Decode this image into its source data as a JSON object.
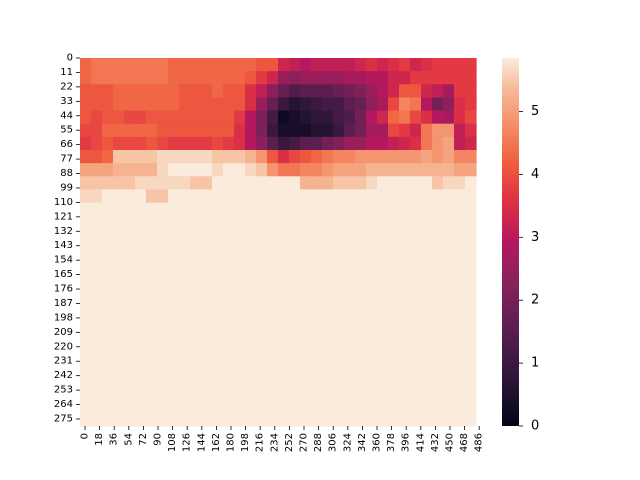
{
  "chart_data": {
    "type": "heatmap",
    "title": "",
    "xlabel": "",
    "ylabel": "",
    "x_tick_labels": [
      "0",
      "18",
      "36",
      "54",
      "72",
      "90",
      "108",
      "126",
      "144",
      "162",
      "180",
      "198",
      "216",
      "234",
      "252",
      "270",
      "288",
      "306",
      "324",
      "342",
      "360",
      "378",
      "396",
      "414",
      "432",
      "450",
      "468",
      "486"
    ],
    "y_tick_labels": [
      "0",
      "11",
      "22",
      "33",
      "44",
      "55",
      "66",
      "77",
      "88",
      "99",
      "110",
      "121",
      "132",
      "143",
      "154",
      "165",
      "176",
      "187",
      "198",
      "209",
      "220",
      "231",
      "242",
      "253",
      "264",
      "275"
    ],
    "colorbar": {
      "ticks": [
        "0",
        "1",
        "2",
        "3",
        "4",
        "5"
      ],
      "vmin": 0,
      "vmax": 5.85,
      "colormap": "rocket"
    },
    "grid_shape": {
      "rows": 28,
      "cols": 36
    },
    "value_grid_note": "downsampled 28x36 estimate of cell values (0-5.85)",
    "values": [
      "WXXXXXXXWWWWWWWWVVRQPQQQQRSRSTRSTTTT",
      "WXXXXXXXWWWWWWWVTRNMNNNNOOPPRRTTTTTT",
      "VVVWWWWWWVVVWVVSQMJHIIIJKLNPRVVRQOTT",
      "VVVWWWWWWVVVVVVSNJFDEFGGIJMOUYXPKMST",
      "VUVVUUVVVVVVVVTPLGBCDEEGHKPRWXUSPOSU",
      "UUWWWWWVVVVVVVSPLFCCCDDFIKOOUTRXZZQS",
      "TUVUUUVUTTTTUTSPMIFGIIKLNNPPQRSXZaQR",
      "VVWccccdddddcccbZVSUVWXYYZZZZZZaZaYY",
      "aaabbbbdeeeedeedcZXXYYZaaabbbbbbbbaa",
      "cccccdddddcceeeeeeeebbbcccdeeeeecdde",
      "ddeeeecceeeeeeeeeeeeeeeeeeeeeeeeeeee",
      "eeeeeeeeeeeeeeeeeeeeeeeeeeeeeeeeeeee",
      "eeeeeeeeeeeeeeeeeeeeeeeeeeeeeeeeeeee",
      "eeeeeeeeeeeeeeeeeeeeeeeeeeeeeeeeeeee",
      "eeeeeeeeeeeeeeeeeeeeeeeeeeeeeeeeeeee",
      "eeeeeeeeeeeeeeeeeeeeeeeeeeeeeeeeeeee",
      "eeeeeeeeeeeeeeeeeeeeeeeeeeeeeeeeeeee",
      "eeeeeeeeeeeeeeeeeeeeeeeeeeeeeeeeeeee",
      "eeeeeeeeeeeeeeeeeeeeeeeeeeeeeeeeeeee",
      "eeeeeeeeeeeeeeeeeeeeeeeeeeeeeeeeeeee",
      "eeeeeeeeeeeeeeeeeeeeeeeeeeeeeeeeeeee",
      "eeeeeeeeeeeeeeeeeeeeeeeeeeeeeeeeeeee",
      "eeeeeeeeeeeeeeeeeeeeeeeeeeeeeeeeeeee",
      "eeeeeeeeeeeeeeeeeeeeeeeeeeeeeeeeeeee",
      "eeeeeeeeeeeeeeeeeeeeeeeeeeeeeeeeeeee",
      "eeeeeeeeeeeeeeeeeeeeeeeeeeeeeeeeeeee",
      "eeeeeeeeeeeeeeeeeeeeeeeeeeeeeeeeeeee",
      "eeeeeeeeeeeeeeeeeeeeeeeeeeeeeeeeeeee"
    ]
  }
}
